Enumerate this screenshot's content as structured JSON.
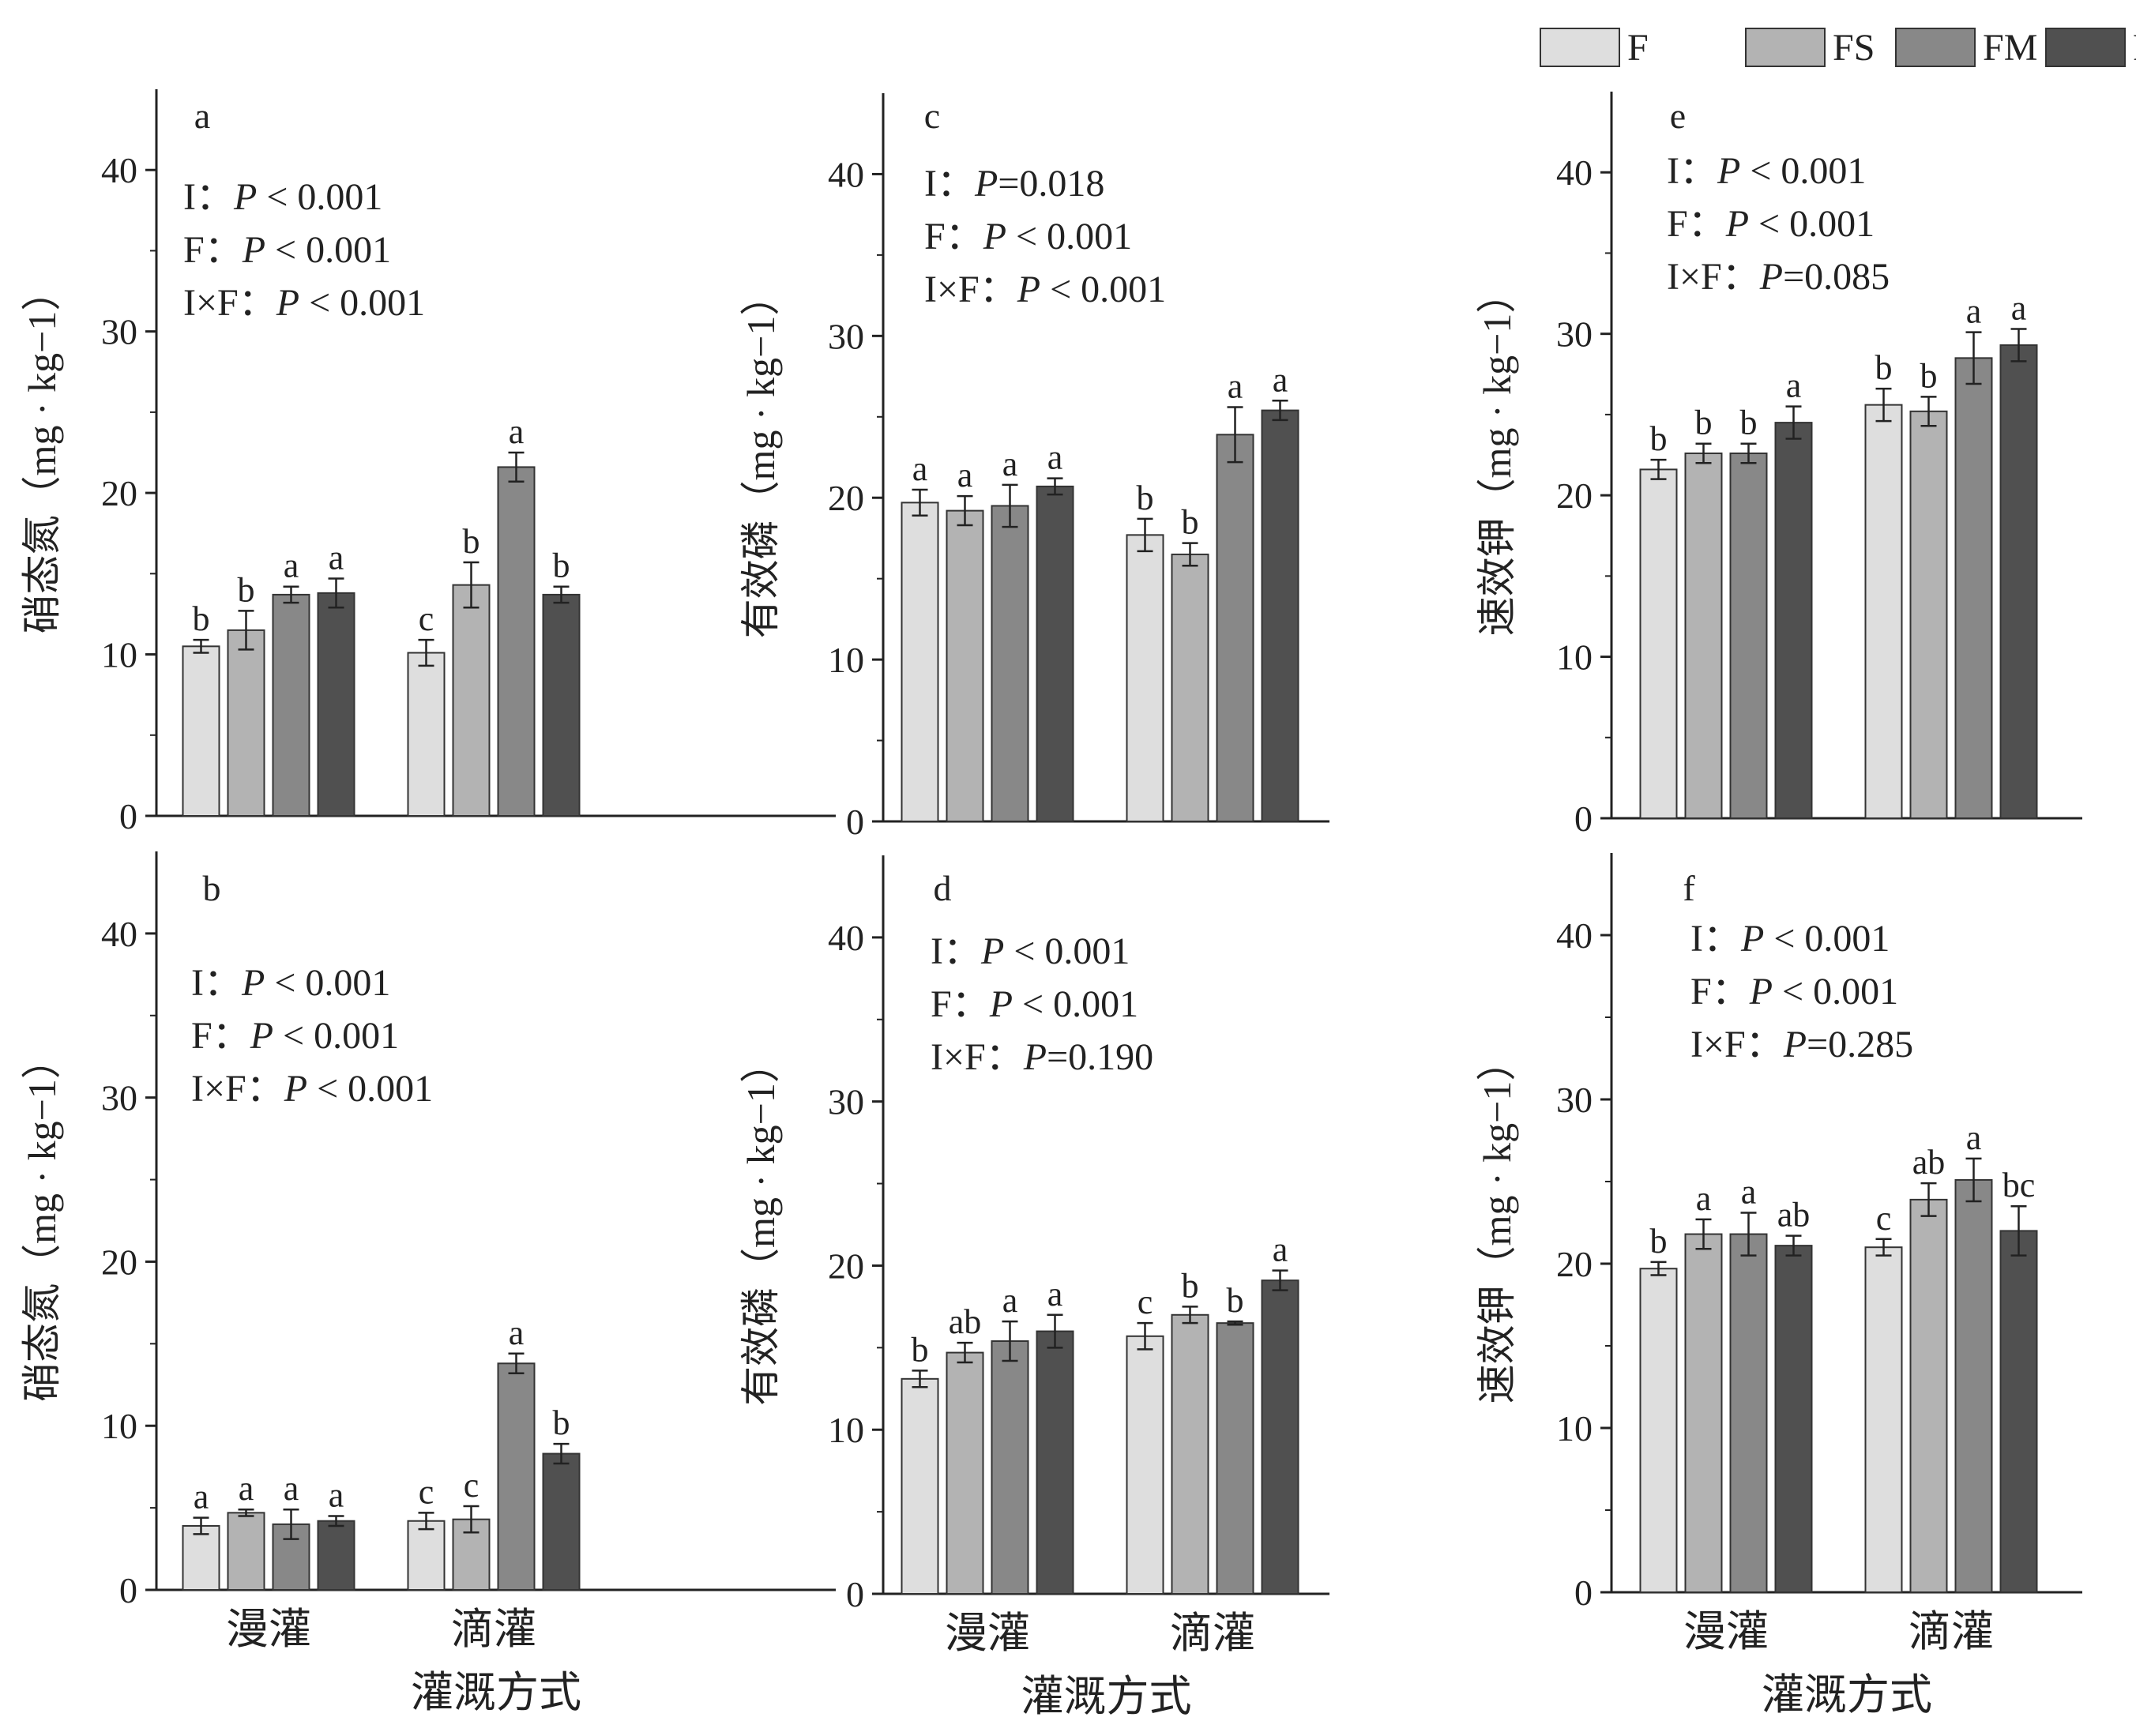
{
  "legend": [
    {
      "label": "F",
      "color": "#dedede"
    },
    {
      "label": "FS",
      "color": "#b3b3b3"
    },
    {
      "label": "FM",
      "color": "#888888"
    },
    {
      "label": "FH",
      "color": "#505050"
    }
  ],
  "chart_data": [
    {
      "type": "bar",
      "panel": "a",
      "ylabel": "硝态氮（mg · kg−1）",
      "ylim": [
        0,
        45
      ],
      "yticks": [
        0,
        10,
        20,
        30,
        40
      ],
      "categories": [
        "漫灌",
        "滴灌"
      ],
      "stats": [
        {
          "term": "I：",
          "p": "P",
          "val": " < 0.001"
        },
        {
          "term": "F：",
          "p": "P",
          "val": " < 0.001"
        },
        {
          "term": "I×F：",
          "p": "P",
          "val": " < 0.001"
        }
      ],
      "series": [
        {
          "name": "F",
          "values": [
            10.5,
            10.1
          ],
          "errors": [
            0.4,
            0.8
          ],
          "letters": [
            "b",
            "c"
          ]
        },
        {
          "name": "FS",
          "values": [
            11.5,
            14.3
          ],
          "errors": [
            1.2,
            1.4
          ],
          "letters": [
            "b",
            "b"
          ]
        },
        {
          "name": "FM",
          "values": [
            13.7,
            21.6
          ],
          "errors": [
            0.5,
            0.9
          ],
          "letters": [
            "a",
            "a"
          ]
        },
        {
          "name": "FH",
          "values": [
            13.8,
            13.7
          ],
          "errors": [
            0.9,
            0.5
          ],
          "letters": [
            "a",
            "b"
          ]
        }
      ]
    },
    {
      "type": "bar",
      "panel": "c",
      "ylabel": "有效磷（mg · kg−1）",
      "ylim": [
        0,
        45
      ],
      "yticks": [
        0,
        10,
        20,
        30,
        40
      ],
      "categories": [
        "漫灌",
        "滴灌"
      ],
      "stats": [
        {
          "term": "I：",
          "p": "P",
          "val": "=0.018"
        },
        {
          "term": "F：",
          "p": "P",
          "val": " < 0.001"
        },
        {
          "term": "I×F：",
          "p": "P",
          "val": " < 0.001"
        }
      ],
      "series": [
        {
          "name": "F",
          "values": [
            19.7,
            17.7
          ],
          "errors": [
            0.8,
            1.0
          ],
          "letters": [
            "a",
            "b"
          ]
        },
        {
          "name": "FS",
          "values": [
            19.2,
            16.5
          ],
          "errors": [
            0.9,
            0.7
          ],
          "letters": [
            "a",
            "b"
          ]
        },
        {
          "name": "FM",
          "values": [
            19.5,
            23.9
          ],
          "errors": [
            1.3,
            1.7
          ],
          "letters": [
            "a",
            "a"
          ]
        },
        {
          "name": "FH",
          "values": [
            20.7,
            25.4
          ],
          "errors": [
            0.5,
            0.6
          ],
          "letters": [
            "a",
            "a"
          ]
        }
      ]
    },
    {
      "type": "bar",
      "panel": "e",
      "ylabel": "速效钾（mg · kg−1）",
      "ylim": [
        0,
        45
      ],
      "yticks": [
        0,
        10,
        20,
        30,
        40
      ],
      "categories": [
        "漫灌",
        "滴灌"
      ],
      "stats": [
        {
          "term": "I：",
          "p": "P",
          "val": " < 0.001"
        },
        {
          "term": "F：",
          "p": "P",
          "val": " < 0.001"
        },
        {
          "term": "I×F：",
          "p": "P",
          "val": "=0.085"
        }
      ],
      "series": [
        {
          "name": "F",
          "values": [
            21.6,
            25.6
          ],
          "errors": [
            0.6,
            1.0
          ],
          "letters": [
            "b",
            "b"
          ]
        },
        {
          "name": "FS",
          "values": [
            22.6,
            25.2
          ],
          "errors": [
            0.6,
            0.9
          ],
          "letters": [
            "b",
            "b"
          ]
        },
        {
          "name": "FM",
          "values": [
            22.6,
            28.5
          ],
          "errors": [
            0.6,
            1.6
          ],
          "letters": [
            "b",
            "a"
          ]
        },
        {
          "name": "FH",
          "values": [
            24.5,
            29.3
          ],
          "errors": [
            1.0,
            1.0
          ],
          "letters": [
            "a",
            "a"
          ]
        }
      ]
    },
    {
      "type": "bar",
      "panel": "b",
      "ylabel": "硝态氮（mg · kg−1）",
      "ylim": [
        0,
        45
      ],
      "yticks": [
        0,
        10,
        20,
        30,
        40
      ],
      "categories": [
        "漫灌",
        "滴灌"
      ],
      "xlabel": "灌溉方式",
      "stats": [
        {
          "term": "I：",
          "p": "P",
          "val": " < 0.001"
        },
        {
          "term": "F：",
          "p": "P",
          "val": " < 0.001"
        },
        {
          "term": "I×F：",
          "p": "P",
          "val": " < 0.001"
        }
      ],
      "series": [
        {
          "name": "F",
          "values": [
            3.9,
            4.2
          ],
          "errors": [
            0.5,
            0.5
          ],
          "letters": [
            "a",
            "c"
          ]
        },
        {
          "name": "FS",
          "values": [
            4.7,
            4.3
          ],
          "errors": [
            0.2,
            0.8
          ],
          "letters": [
            "a",
            "c"
          ]
        },
        {
          "name": "FM",
          "values": [
            4.0,
            13.8
          ],
          "errors": [
            0.9,
            0.6
          ],
          "letters": [
            "a",
            "a"
          ]
        },
        {
          "name": "FH",
          "values": [
            4.2,
            8.3
          ],
          "errors": [
            0.3,
            0.6
          ],
          "letters": [
            "a",
            "b"
          ]
        }
      ]
    },
    {
      "type": "bar",
      "panel": "d",
      "ylabel": "有效磷（mg · kg−1）",
      "ylim": [
        0,
        45
      ],
      "yticks": [
        0,
        10,
        20,
        30,
        40
      ],
      "categories": [
        "漫灌",
        "滴灌"
      ],
      "xlabel": "灌溉方式",
      "stats": [
        {
          "term": "I：",
          "p": "P",
          "val": " < 0.001"
        },
        {
          "term": "F：",
          "p": "P",
          "val": " < 0.001"
        },
        {
          "term": "I×F：",
          "p": "P",
          "val": "=0.190"
        }
      ],
      "series": [
        {
          "name": "F",
          "values": [
            13.1,
            15.7
          ],
          "errors": [
            0.5,
            0.8
          ],
          "letters": [
            "b",
            "c"
          ]
        },
        {
          "name": "FS",
          "values": [
            14.7,
            17.0
          ],
          "errors": [
            0.6,
            0.5
          ],
          "letters": [
            "ab",
            "b"
          ]
        },
        {
          "name": "FM",
          "values": [
            15.4,
            16.5
          ],
          "errors": [
            1.2,
            0.1
          ],
          "letters": [
            "a",
            "b"
          ]
        },
        {
          "name": "FH",
          "values": [
            16.0,
            19.1
          ],
          "errors": [
            1.0,
            0.6
          ],
          "letters": [
            "a",
            "a"
          ]
        }
      ]
    },
    {
      "type": "bar",
      "panel": "f",
      "ylabel": "速效钾（mg · kg−1）",
      "ylim": [
        0,
        45
      ],
      "yticks": [
        0,
        10,
        20,
        30,
        40
      ],
      "categories": [
        "漫灌",
        "滴灌"
      ],
      "xlabel": "灌溉方式",
      "stats": [
        {
          "term": "I：",
          "p": "P",
          "val": " < 0.001"
        },
        {
          "term": "F：",
          "p": "P",
          "val": " < 0.001"
        },
        {
          "term": "I×F：",
          "p": "P",
          "val": "=0.285"
        }
      ],
      "series": [
        {
          "name": "F",
          "values": [
            19.7,
            21.0
          ],
          "errors": [
            0.4,
            0.5
          ],
          "letters": [
            "b",
            "c"
          ]
        },
        {
          "name": "FS",
          "values": [
            21.8,
            23.9
          ],
          "errors": [
            0.9,
            1.0
          ],
          "letters": [
            "a",
            "ab"
          ]
        },
        {
          "name": "FM",
          "values": [
            21.8,
            25.1
          ],
          "errors": [
            1.3,
            1.3
          ],
          "letters": [
            "a",
            "a"
          ]
        },
        {
          "name": "FH",
          "values": [
            21.1,
            22.0
          ],
          "errors": [
            0.6,
            1.5
          ],
          "letters": [
            "ab",
            "bc"
          ]
        }
      ]
    }
  ]
}
